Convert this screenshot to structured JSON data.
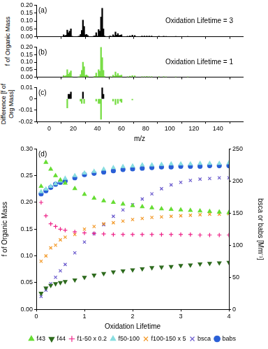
{
  "chart_data": [
    {
      "type": "bar",
      "annotations": [
        "(a)",
        "Oxidation Lifetime = 3"
      ],
      "y_label": "f of Organic Mass",
      "x": [
        12,
        13,
        14,
        15,
        16,
        17,
        18,
        19,
        24,
        25,
        26,
        27,
        28,
        29,
        30,
        31,
        32,
        37,
        38,
        39,
        40,
        41,
        42,
        43,
        44,
        45,
        46,
        50,
        51,
        53,
        54,
        55,
        56,
        57,
        58,
        59,
        60,
        65,
        67,
        69,
        71,
        77,
        79,
        81,
        83,
        85,
        91,
        95,
        97,
        105,
        115
      ],
      "values": [
        0.012,
        0.006,
        0.01,
        0.042,
        0.025,
        0.035,
        0.05,
        0.003,
        0.002,
        0.004,
        0.015,
        0.04,
        0.105,
        0.065,
        0.012,
        0.015,
        0.008,
        0.004,
        0.006,
        0.025,
        0.005,
        0.045,
        0.035,
        0.125,
        0.18,
        0.05,
        0.005,
        0.003,
        0.004,
        0.012,
        0.005,
        0.03,
        0.01,
        0.02,
        0.008,
        0.01,
        0.012,
        0.003,
        0.006,
        0.01,
        0.008,
        0.004,
        0.004,
        0.005,
        0.004,
        0.004,
        0.003,
        0.003,
        0.002,
        0.002,
        0.002
      ],
      "color": "#000000",
      "xlim": [
        0,
        150
      ],
      "xticks": [
        0,
        20,
        40,
        60,
        80,
        100,
        120,
        140
      ],
      "ylim": [
        0,
        0.2
      ],
      "yticks": [
        {
          "value": 0,
          "label": "0.00"
        },
        {
          "value": 0.05,
          "label": "0.05"
        },
        {
          "value": 0.1,
          "label": "0.10"
        },
        {
          "value": 0.15,
          "label": "0.15"
        },
        {
          "value": 0.2,
          "label": "0.20"
        }
      ],
      "grid": false,
      "tick_labels": "y"
    },
    {
      "type": "bar",
      "annotations": [
        "(b)",
        "Oxidation Lifetime = 1"
      ],
      "x": [
        12,
        13,
        14,
        15,
        16,
        17,
        18,
        19,
        24,
        25,
        26,
        27,
        28,
        29,
        30,
        31,
        32,
        37,
        38,
        39,
        40,
        41,
        42,
        43,
        44,
        45,
        46,
        50,
        51,
        53,
        54,
        55,
        56,
        57,
        58,
        59,
        60,
        65,
        67,
        69,
        71,
        77,
        79,
        81,
        83,
        85,
        91,
        95,
        97,
        105,
        115
      ],
      "values": [
        0.012,
        0.006,
        0.012,
        0.05,
        0.02,
        0.03,
        0.042,
        0.003,
        0.002,
        0.004,
        0.018,
        0.045,
        0.1,
        0.07,
        0.012,
        0.015,
        0.008,
        0.004,
        0.006,
        0.028,
        0.005,
        0.05,
        0.04,
        0.2,
        0.13,
        0.045,
        0.005,
        0.003,
        0.004,
        0.014,
        0.006,
        0.035,
        0.012,
        0.024,
        0.01,
        0.012,
        0.014,
        0.003,
        0.007,
        0.011,
        0.009,
        0.004,
        0.004,
        0.005,
        0.004,
        0.004,
        0.003,
        0.003,
        0.002,
        0.002,
        0.002
      ],
      "color": "#77dd44",
      "xlim": [
        0,
        150
      ],
      "xticks": [
        0,
        20,
        40,
        60,
        80,
        100,
        120,
        140
      ],
      "ylim": [
        0,
        0.2
      ],
      "yticks": [
        {
          "value": 0,
          "label": "0.00"
        },
        {
          "value": 0.05,
          "label": "0.05"
        },
        {
          "value": 0.1,
          "label": "0.10"
        },
        {
          "value": 0.15,
          "label": "0.15"
        },
        {
          "value": 0.2,
          "label": "0.20"
        }
      ],
      "grid": false,
      "tick_labels": "y"
    },
    {
      "type": "bar",
      "annotations": [
        "(c)"
      ],
      "y_label": "Difference [f of Org Mass]",
      "x_label": "m/z",
      "x": [
        15,
        16,
        17,
        18,
        26,
        27,
        28,
        29,
        39,
        41,
        42,
        43,
        44,
        45,
        53,
        55,
        57,
        59,
        60,
        69
      ],
      "values": [
        -0.008,
        0.004,
        0.004,
        0.006,
        -0.002,
        -0.004,
        0.006,
        -0.004,
        -0.002,
        -0.004,
        -0.004,
        -0.018,
        0.01,
        0.004,
        -0.002,
        -0.005,
        -0.004,
        -0.002,
        -0.003,
        -0.001
      ],
      "colors": [
        "#77dd44",
        "#000000",
        "#000000",
        "#000000",
        "#77dd44",
        "#77dd44",
        "#000000",
        "#77dd44",
        "#77dd44",
        "#77dd44",
        "#77dd44",
        "#77dd44",
        "#000000",
        "#000000",
        "#77dd44",
        "#77dd44",
        "#77dd44",
        "#77dd44",
        "#77dd44",
        "#77dd44"
      ],
      "xlim": [
        0,
        150
      ],
      "xticks": [
        0,
        20,
        40,
        60,
        80,
        100,
        120,
        140
      ],
      "ylim": [
        -0.02,
        0.01
      ],
      "yticks": [
        -0.02,
        -0.01,
        0,
        0.01
      ],
      "grid": false
    },
    {
      "type": "scatter",
      "annotations": [
        "(d)"
      ],
      "x_label": "Oxidation Lifetime",
      "y_label": "f of Organic Mass",
      "y2_label": "bsca or babs [Mm⁻¹]",
      "x": [
        0.1,
        0.2,
        0.3,
        0.4,
        0.5,
        0.6,
        0.8,
        1.0,
        1.2,
        1.4,
        1.6,
        1.8,
        2.0,
        2.2,
        2.4,
        2.6,
        2.8,
        3.0,
        3.2,
        3.4,
        3.6,
        3.8,
        4.0
      ],
      "series": [
        {
          "name": "f43",
          "color": "#66dd33",
          "marker": "triangle",
          "values": [
            0.23,
            0.275,
            0.262,
            0.25,
            0.242,
            0.236,
            0.226,
            0.215,
            0.208,
            0.203,
            0.2,
            0.197,
            0.194,
            0.192,
            0.19,
            0.188,
            0.187,
            0.186,
            0.185,
            0.184,
            0.183,
            0.182,
            0.181
          ]
        },
        {
          "name": "f44",
          "color": "#2e6b1e",
          "marker": "triangle_down",
          "values": [
            0.03,
            0.04,
            0.045,
            0.048,
            0.05,
            0.052,
            0.055,
            0.06,
            0.064,
            0.067,
            0.07,
            0.072,
            0.074,
            0.076,
            0.078,
            0.079,
            0.08,
            0.082,
            0.083,
            0.085,
            0.086,
            0.087,
            0.088
          ]
        },
        {
          "name": "f1-50 x 0.2",
          "color": "#ee2288",
          "marker": "plus",
          "values": [
            0.2,
            0.175,
            0.16,
            0.155,
            0.15,
            0.148,
            0.145,
            0.143,
            0.142,
            0.141,
            0.14,
            0.14,
            0.14,
            0.14,
            0.14,
            0.14,
            0.14,
            0.14,
            0.14,
            0.139,
            0.139,
            0.139,
            0.139
          ]
        },
        {
          "name": "f50-100",
          "color": "#88dde0",
          "marker": "triangle",
          "values": [
            0.22,
            0.225,
            0.23,
            0.235,
            0.24,
            0.245,
            0.25,
            0.255,
            0.258,
            0.262,
            0.265,
            0.267,
            0.268,
            0.27,
            0.27,
            0.271,
            0.272,
            0.272,
            0.272,
            0.273,
            0.273,
            0.273,
            0.274
          ]
        },
        {
          "name": "f100-150 x 5",
          "color": "#f39a2a",
          "marker": "x",
          "values": [
            0.09,
            0.1,
            0.115,
            0.12,
            0.13,
            0.135,
            0.14,
            0.15,
            0.155,
            0.16,
            0.162,
            0.165,
            0.168,
            0.17,
            0.172,
            0.173,
            0.174,
            0.175,
            0.176,
            0.177,
            0.178,
            0.178,
            0.179
          ]
        },
        {
          "name": "bsca",
          "color": "#6a5acd",
          "marker": "x",
          "axis": "y2",
          "values": [
            20,
            30,
            40,
            50,
            60,
            70,
            88,
            105,
            118,
            132,
            145,
            155,
            163,
            172,
            180,
            188,
            194,
            198,
            201,
            203,
            204,
            205,
            205
          ]
        },
        {
          "name": "babs",
          "color": "#2a5fd6",
          "marker": "circle",
          "axis": "y2",
          "values": [
            180,
            185,
            190,
            195,
            198,
            200,
            205,
            210,
            212,
            214,
            216,
            218,
            219,
            220,
            221,
            222,
            222,
            223,
            223,
            223,
            224,
            224,
            224
          ]
        }
      ],
      "xlim": [
        0,
        4
      ],
      "xticks": [
        0,
        1,
        2,
        3,
        4
      ],
      "ylim": [
        0,
        0.3
      ],
      "yticks": [
        {
          "value": 0,
          "label": "0.00"
        },
        {
          "value": 0.05,
          "label": "0.05"
        },
        {
          "value": 0.1,
          "label": "0.10"
        },
        {
          "value": 0.15,
          "label": "0.15"
        },
        {
          "value": 0.2,
          "label": "0.20"
        },
        {
          "value": 0.25,
          "label": "0.25"
        },
        {
          "value": 0.3,
          "label": "0.30"
        }
      ],
      "y2lim": [
        0,
        250
      ],
      "y2ticks": [
        0,
        50,
        100,
        150,
        200,
        250
      ],
      "grid": false,
      "legend": "bottom"
    }
  ]
}
